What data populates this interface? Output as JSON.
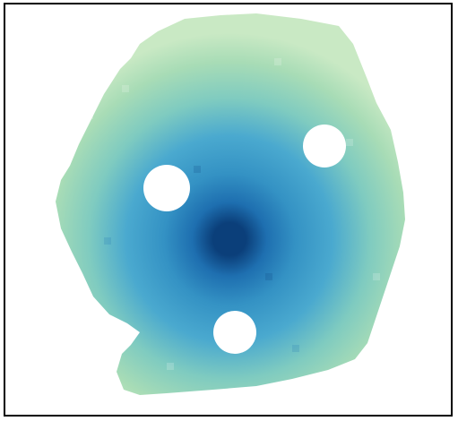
{
  "image": {
    "description_colors": {
      "outer": "#a8dcb6",
      "mid_light": "#7fcbc0",
      "mid": "#4aa9cf",
      "deep": "#1e6fb0",
      "core": "#0b3f7a",
      "mask": "#ffffff",
      "frame": "#000000"
    }
  }
}
